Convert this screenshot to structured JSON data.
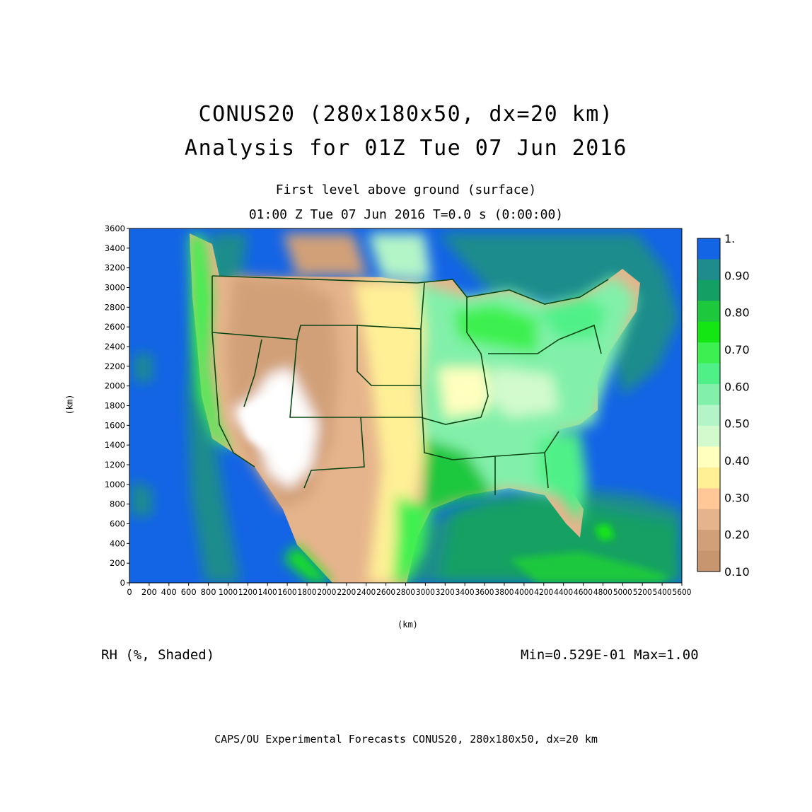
{
  "header": {
    "title_line1": "CONUS20 (280x180x50, dx=20 km)",
    "title_line2": "Analysis for 01Z Tue 07 Jun 2016",
    "subtitle_line1": "First level above ground (surface)",
    "subtitle_line2": "01:00 Z Tue 07 Jun 2016    T=0.0 s (0:00:00)"
  },
  "field_label": "RH (%, Shaded)",
  "min_max_label": "Min=0.529E-01 Max=1.00",
  "footer_text": "CAPS/OU Experimental Forecasts  CONUS20, 280x180x50, dx=20 km",
  "axes": {
    "x_unit": "(km)",
    "y_unit": "(km)",
    "x_ticks": [
      "0",
      "200",
      "400",
      "600",
      "800",
      "1000",
      "1200",
      "1400",
      "1600",
      "1800",
      "2000",
      "2200",
      "2400",
      "2600",
      "2800",
      "3000",
      "3200",
      "3400",
      "3600",
      "3800",
      "4000",
      "4200",
      "4400",
      "4600",
      "4800",
      "5000",
      "5200",
      "5400",
      "5600"
    ],
    "y_ticks": [
      "0",
      "200",
      "400",
      "600",
      "800",
      "1000",
      "1200",
      "1400",
      "1600",
      "1800",
      "2000",
      "2200",
      "2400",
      "2600",
      "2800",
      "3000",
      "3200",
      "3400",
      "3600"
    ],
    "x_range": [
      0,
      5600
    ],
    "y_range": [
      0,
      3600
    ]
  },
  "colorbar": {
    "labels": [
      "1.",
      "0.90",
      "0.80",
      "0.70",
      "0.60",
      "0.50",
      "0.40",
      "0.30",
      "0.20",
      "0.10"
    ],
    "colors": [
      "#1464e6",
      "#1e8c8c",
      "#14a064",
      "#1ec83c",
      "#14e614",
      "#3cf050",
      "#50f088",
      "#82f0aa",
      "#b4f5c8",
      "#d2facd",
      "#ffffbe",
      "#fff096",
      "#ffc896",
      "#e6b48c",
      "#d2a078",
      "#c8966e"
    ]
  },
  "colors": {
    "ocean": "#1464e6",
    "land_base": "#e6b48c",
    "boundary": "#0a4614"
  }
}
